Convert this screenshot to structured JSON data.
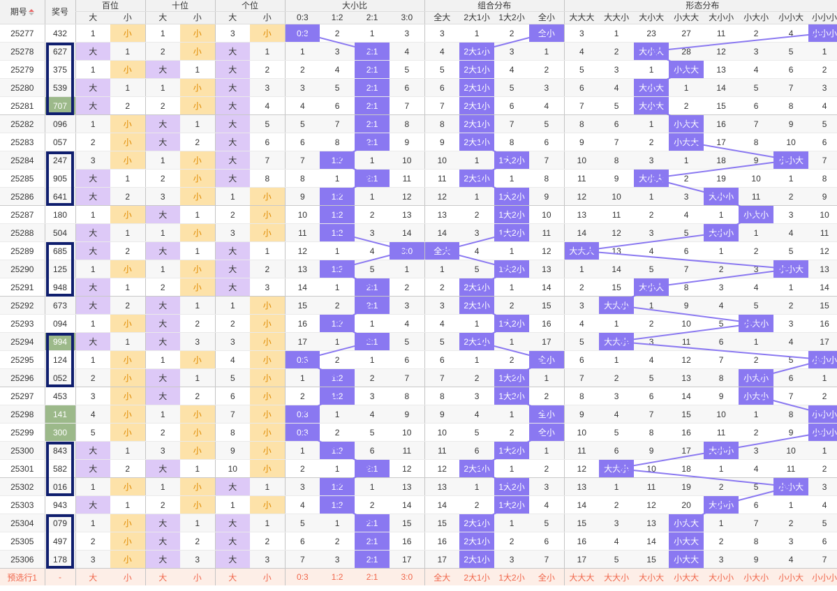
{
  "header": {
    "issue": "期号",
    "prize": "奖号",
    "groups": [
      "百位",
      "十位",
      "个位",
      "大小比",
      "组合分布",
      "形态分布"
    ],
    "bigsmall": [
      "大",
      "小"
    ],
    "ratio": [
      "0:3",
      "1:2",
      "2:1",
      "3:0"
    ],
    "combo": [
      "全大",
      "2大1小",
      "1大2小",
      "全小"
    ],
    "shape": [
      "大大大",
      "大大小",
      "大小大",
      "小大大",
      "大小小",
      "小大小",
      "小小大",
      "小小小"
    ]
  },
  "footer": {
    "label": "预选行1",
    "dash": "-",
    "cells": [
      "大",
      "小",
      "大",
      "小",
      "大",
      "小",
      "0:3",
      "1:2",
      "2:1",
      "3:0",
      "全大",
      "2大1小",
      "1大2小",
      "全小",
      "大大大",
      "大大小",
      "大小大",
      "小大大",
      "大小小",
      "小大小",
      "小小大",
      "小小小"
    ]
  },
  "colors": {
    "big": "#ddc9f7",
    "small": "#fde2a9",
    "hit": "#8a78f1",
    "highlight_box": "#0f1e6e",
    "repeat_bg": "#9cb98a",
    "footer_text": "#f0654a"
  },
  "sort_icon": "sort-up-icon",
  "rows": [
    {
      "issue": "25277",
      "num": "432",
      "pos": [
        "1",
        "小",
        "1",
        "小",
        "3",
        "小"
      ],
      "ratio": [
        "0:3",
        "2",
        "1",
        "3"
      ],
      "combo": [
        "3",
        "1",
        "2",
        "全小"
      ],
      "shape": [
        "3",
        "1",
        "23",
        "27",
        "11",
        "2",
        "4",
        "小小小"
      ]
    },
    {
      "issue": "25278",
      "num": "627",
      "pos": [
        "大",
        "1",
        "2",
        "小",
        "大",
        "1"
      ],
      "ratio": [
        "1",
        "3",
        "2:1",
        "4"
      ],
      "combo": [
        "4",
        "2大1小",
        "3",
        "1"
      ],
      "shape": [
        "4",
        "2",
        "大小大",
        "28",
        "12",
        "3",
        "5",
        "1"
      ]
    },
    {
      "issue": "25279",
      "num": "375",
      "pos": [
        "1",
        "小",
        "大",
        "1",
        "大",
        "2"
      ],
      "ratio": [
        "2",
        "4",
        "2:1",
        "5"
      ],
      "combo": [
        "5",
        "2大1小",
        "4",
        "2"
      ],
      "shape": [
        "5",
        "3",
        "1",
        "小大大",
        "13",
        "4",
        "6",
        "2"
      ]
    },
    {
      "issue": "25280",
      "num": "539",
      "pos": [
        "大",
        "1",
        "1",
        "小",
        "大",
        "3"
      ],
      "ratio": [
        "3",
        "5",
        "2:1",
        "6"
      ],
      "combo": [
        "6",
        "2大1小",
        "5",
        "3"
      ],
      "shape": [
        "6",
        "4",
        "大小大",
        "1",
        "14",
        "5",
        "7",
        "3"
      ]
    },
    {
      "issue": "25281",
      "num": "707",
      "pos": [
        "大",
        "2",
        "2",
        "小",
        "大",
        "4"
      ],
      "ratio": [
        "4",
        "6",
        "2:1",
        "7"
      ],
      "combo": [
        "7",
        "2大1小",
        "6",
        "4"
      ],
      "shape": [
        "7",
        "5",
        "大小大",
        "2",
        "15",
        "6",
        "8",
        "4"
      ]
    },
    {
      "issue": "25282",
      "num": "096",
      "pos": [
        "1",
        "小",
        "大",
        "1",
        "大",
        "5"
      ],
      "ratio": [
        "5",
        "7",
        "2:1",
        "8"
      ],
      "combo": [
        "8",
        "2大1小",
        "7",
        "5"
      ],
      "shape": [
        "8",
        "6",
        "1",
        "小大大",
        "16",
        "7",
        "9",
        "5"
      ]
    },
    {
      "issue": "25283",
      "num": "057",
      "pos": [
        "2",
        "小",
        "大",
        "2",
        "大",
        "6"
      ],
      "ratio": [
        "6",
        "8",
        "2:1",
        "9"
      ],
      "combo": [
        "9",
        "2大1小",
        "8",
        "6"
      ],
      "shape": [
        "9",
        "7",
        "2",
        "小大大",
        "17",
        "8",
        "10",
        "6"
      ]
    },
    {
      "issue": "25284",
      "num": "247",
      "pos": [
        "3",
        "小",
        "1",
        "小",
        "大",
        "7"
      ],
      "ratio": [
        "7",
        "1:2",
        "1",
        "10"
      ],
      "combo": [
        "10",
        "1",
        "1大2小",
        "7"
      ],
      "shape": [
        "10",
        "8",
        "3",
        "1",
        "18",
        "9",
        "小小大",
        "7"
      ]
    },
    {
      "issue": "25285",
      "num": "905",
      "pos": [
        "大",
        "1",
        "2",
        "小",
        "大",
        "8"
      ],
      "ratio": [
        "8",
        "1",
        "2:1",
        "11"
      ],
      "combo": [
        "11",
        "2大1小",
        "1",
        "8"
      ],
      "shape": [
        "11",
        "9",
        "大小大",
        "2",
        "19",
        "10",
        "1",
        "8"
      ]
    },
    {
      "issue": "25286",
      "num": "641",
      "pos": [
        "大",
        "2",
        "3",
        "小",
        "1",
        "小"
      ],
      "ratio": [
        "9",
        "1:2",
        "1",
        "12"
      ],
      "combo": [
        "12",
        "1",
        "1大2小",
        "9"
      ],
      "shape": [
        "12",
        "10",
        "1",
        "3",
        "大小小",
        "11",
        "2",
        "9"
      ]
    },
    {
      "issue": "25287",
      "num": "180",
      "pos": [
        "1",
        "小",
        "大",
        "1",
        "2",
        "小"
      ],
      "ratio": [
        "10",
        "1:2",
        "2",
        "13"
      ],
      "combo": [
        "13",
        "2",
        "1大2小",
        "10"
      ],
      "shape": [
        "13",
        "11",
        "2",
        "4",
        "1",
        "小大小",
        "3",
        "10"
      ]
    },
    {
      "issue": "25288",
      "num": "504",
      "pos": [
        "大",
        "1",
        "1",
        "小",
        "3",
        "小"
      ],
      "ratio": [
        "11",
        "1:2",
        "3",
        "14"
      ],
      "combo": [
        "14",
        "3",
        "1大2小",
        "11"
      ],
      "shape": [
        "14",
        "12",
        "3",
        "5",
        "大小小",
        "1",
        "4",
        "11"
      ]
    },
    {
      "issue": "25289",
      "num": "685",
      "pos": [
        "大",
        "2",
        "大",
        "1",
        "大",
        "1"
      ],
      "ratio": [
        "12",
        "1",
        "4",
        "3:0"
      ],
      "combo": [
        "全大",
        "4",
        "1",
        "12"
      ],
      "shape": [
        "大大大",
        "13",
        "4",
        "6",
        "1",
        "2",
        "5",
        "12"
      ]
    },
    {
      "issue": "25290",
      "num": "125",
      "pos": [
        "1",
        "小",
        "1",
        "小",
        "大",
        "2"
      ],
      "ratio": [
        "13",
        "1:2",
        "5",
        "1"
      ],
      "combo": [
        "1",
        "5",
        "1大2小",
        "13"
      ],
      "shape": [
        "1",
        "14",
        "5",
        "7",
        "2",
        "3",
        "小小大",
        "13"
      ]
    },
    {
      "issue": "25291",
      "num": "948",
      "pos": [
        "大",
        "1",
        "2",
        "小",
        "大",
        "3"
      ],
      "ratio": [
        "14",
        "1",
        "2:1",
        "2"
      ],
      "combo": [
        "2",
        "2大1小",
        "1",
        "14"
      ],
      "shape": [
        "2",
        "15",
        "大小大",
        "8",
        "3",
        "4",
        "1",
        "14"
      ]
    },
    {
      "issue": "25292",
      "num": "673",
      "pos": [
        "大",
        "2",
        "大",
        "1",
        "1",
        "小"
      ],
      "ratio": [
        "15",
        "2",
        "2:1",
        "3"
      ],
      "combo": [
        "3",
        "2大1小",
        "2",
        "15"
      ],
      "shape": [
        "3",
        "大大小",
        "1",
        "9",
        "4",
        "5",
        "2",
        "15"
      ]
    },
    {
      "issue": "25293",
      "num": "094",
      "pos": [
        "1",
        "小",
        "大",
        "2",
        "2",
        "小"
      ],
      "ratio": [
        "16",
        "1:2",
        "1",
        "4"
      ],
      "combo": [
        "4",
        "1",
        "1大2小",
        "16"
      ],
      "shape": [
        "4",
        "1",
        "2",
        "10",
        "5",
        "小大小",
        "3",
        "16"
      ]
    },
    {
      "issue": "25294",
      "num": "994",
      "pos": [
        "大",
        "1",
        "大",
        "3",
        "3",
        "小"
      ],
      "ratio": [
        "17",
        "1",
        "2:1",
        "5"
      ],
      "combo": [
        "5",
        "2大1小",
        "1",
        "17"
      ],
      "shape": [
        "5",
        "大大小",
        "3",
        "11",
        "6",
        "1",
        "4",
        "17"
      ]
    },
    {
      "issue": "25295",
      "num": "124",
      "pos": [
        "1",
        "小",
        "1",
        "小",
        "4",
        "小"
      ],
      "ratio": [
        "0:3",
        "2",
        "1",
        "6"
      ],
      "combo": [
        "6",
        "1",
        "2",
        "全小"
      ],
      "shape": [
        "6",
        "1",
        "4",
        "12",
        "7",
        "2",
        "5",
        "小小小"
      ]
    },
    {
      "issue": "25296",
      "num": "052",
      "pos": [
        "2",
        "小",
        "大",
        "1",
        "5",
        "小"
      ],
      "ratio": [
        "1",
        "1:2",
        "2",
        "7"
      ],
      "combo": [
        "7",
        "2",
        "1大2小",
        "1"
      ],
      "shape": [
        "7",
        "2",
        "5",
        "13",
        "8",
        "小大小",
        "6",
        "1"
      ]
    },
    {
      "issue": "25297",
      "num": "453",
      "pos": [
        "3",
        "小",
        "大",
        "2",
        "6",
        "小"
      ],
      "ratio": [
        "2",
        "1:2",
        "3",
        "8"
      ],
      "combo": [
        "8",
        "3",
        "1大2小",
        "2"
      ],
      "shape": [
        "8",
        "3",
        "6",
        "14",
        "9",
        "小大小",
        "7",
        "2"
      ]
    },
    {
      "issue": "25298",
      "num": "141",
      "pos": [
        "4",
        "小",
        "1",
        "小",
        "7",
        "小"
      ],
      "ratio": [
        "0:3",
        "1",
        "4",
        "9"
      ],
      "combo": [
        "9",
        "4",
        "1",
        "全小"
      ],
      "shape": [
        "9",
        "4",
        "7",
        "15",
        "10",
        "1",
        "8",
        "小小小"
      ]
    },
    {
      "issue": "25299",
      "num": "300",
      "pos": [
        "5",
        "小",
        "2",
        "小",
        "8",
        "小"
      ],
      "ratio": [
        "0:3",
        "2",
        "5",
        "10"
      ],
      "combo": [
        "10",
        "5",
        "2",
        "全小"
      ],
      "shape": [
        "10",
        "5",
        "8",
        "16",
        "11",
        "2",
        "9",
        "小小小"
      ]
    },
    {
      "issue": "25300",
      "num": "843",
      "pos": [
        "大",
        "1",
        "3",
        "小",
        "9",
        "小"
      ],
      "ratio": [
        "1",
        "1:2",
        "6",
        "11"
      ],
      "combo": [
        "11",
        "6",
        "1大2小",
        "1"
      ],
      "shape": [
        "11",
        "6",
        "9",
        "17",
        "大小小",
        "3",
        "10",
        "1"
      ]
    },
    {
      "issue": "25301",
      "num": "582",
      "pos": [
        "大",
        "2",
        "大",
        "1",
        "10",
        "小"
      ],
      "ratio": [
        "2",
        "1",
        "2:1",
        "12"
      ],
      "combo": [
        "12",
        "2大1小",
        "1",
        "2"
      ],
      "shape": [
        "12",
        "大大小",
        "10",
        "18",
        "1",
        "4",
        "11",
        "2"
      ]
    },
    {
      "issue": "25302",
      "num": "016",
      "pos": [
        "1",
        "小",
        "1",
        "小",
        "大",
        "1"
      ],
      "ratio": [
        "3",
        "1:2",
        "1",
        "13"
      ],
      "combo": [
        "13",
        "1",
        "1大2小",
        "3"
      ],
      "shape": [
        "13",
        "1",
        "11",
        "19",
        "2",
        "5",
        "小小大",
        "3"
      ]
    },
    {
      "issue": "25303",
      "num": "943",
      "pos": [
        "大",
        "1",
        "2",
        "小",
        "1",
        "小"
      ],
      "ratio": [
        "4",
        "1:2",
        "2",
        "14"
      ],
      "combo": [
        "14",
        "2",
        "1大2小",
        "4"
      ],
      "shape": [
        "14",
        "2",
        "12",
        "20",
        "大小小",
        "6",
        "1",
        "4"
      ]
    },
    {
      "issue": "25304",
      "num": "079",
      "pos": [
        "1",
        "小",
        "大",
        "1",
        "大",
        "1"
      ],
      "ratio": [
        "5",
        "1",
        "2:1",
        "15"
      ],
      "combo": [
        "15",
        "2大1小",
        "1",
        "5"
      ],
      "shape": [
        "15",
        "3",
        "13",
        "小大大",
        "1",
        "7",
        "2",
        "5"
      ]
    },
    {
      "issue": "25305",
      "num": "497",
      "pos": [
        "2",
        "小",
        "大",
        "2",
        "大",
        "2"
      ],
      "ratio": [
        "6",
        "2",
        "2:1",
        "16"
      ],
      "combo": [
        "16",
        "2大1小",
        "2",
        "6"
      ],
      "shape": [
        "16",
        "4",
        "14",
        "小大大",
        "2",
        "8",
        "3",
        "6"
      ]
    },
    {
      "issue": "25306",
      "num": "178",
      "pos": [
        "3",
        "小",
        "大",
        "3",
        "大",
        "3"
      ],
      "ratio": [
        "7",
        "3",
        "2:1",
        "17"
      ],
      "combo": [
        "17",
        "2大1小",
        "3",
        "7"
      ],
      "shape": [
        "17",
        "5",
        "15",
        "小大大",
        "3",
        "9",
        "4",
        "7"
      ]
    }
  ],
  "highlight_groups": [
    [
      "25278",
      "25281"
    ],
    [
      "25284",
      "25286"
    ],
    [
      "25289",
      "25291"
    ],
    [
      "25294",
      "25296"
    ],
    [
      "25300",
      "25302"
    ],
    [
      "25304",
      "25306"
    ]
  ],
  "repeat_highlight": [
    "25281",
    "25294",
    "25298",
    "25299"
  ]
}
